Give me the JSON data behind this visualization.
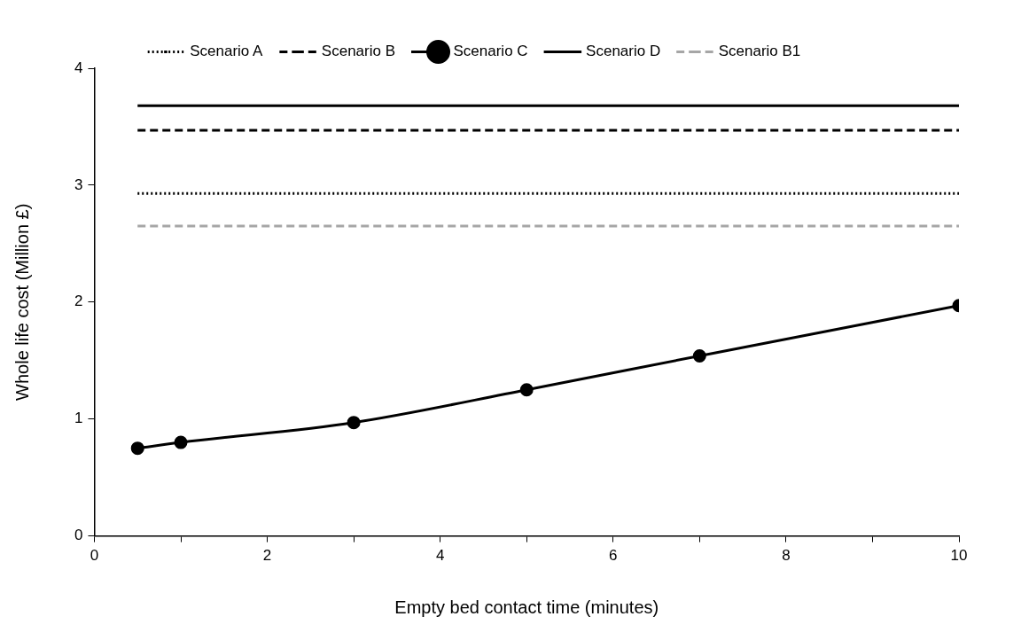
{
  "chart_data": {
    "type": "line",
    "xlabel": "Empty bed contact time (minutes)",
    "ylabel": "Whole life cost (Million £)",
    "xlim": [
      0,
      10
    ],
    "xticks": [
      0,
      {
        "value": 1,
        "label": null
      },
      2,
      {
        "value": 3,
        "label": null
      },
      4,
      {
        "value": 5,
        "label": null
      },
      6,
      {
        "value": 7,
        "label": null
      },
      8,
      {
        "value": 9,
        "label": null
      },
      10
    ],
    "ylim": [
      0,
      4
    ],
    "yticks": [
      0,
      1,
      2,
      3,
      4
    ],
    "grid": false,
    "legend": "top",
    "series": [
      {
        "name": "Scenario A",
        "color": "#000000",
        "line_style": "dotted",
        "marker": "none",
        "x": [
          0.5,
          10
        ],
        "values": [
          2.93,
          2.93
        ]
      },
      {
        "name": "Scenario B",
        "color": "#000000",
        "line_style": "dashed",
        "marker": "none",
        "x": [
          0.5,
          10
        ],
        "values": [
          3.47,
          3.47
        ]
      },
      {
        "name": "Scenario C",
        "color": "#000000",
        "line_style": "solid",
        "marker": "circle",
        "x": [
          0.5,
          1,
          3,
          5,
          7,
          10
        ],
        "values": [
          0.75,
          0.8,
          0.97,
          1.25,
          1.54,
          1.97
        ]
      },
      {
        "name": "Scenario D",
        "color": "#000000",
        "line_style": "solid",
        "marker": "none",
        "x": [
          0.5,
          10
        ],
        "values": [
          3.68,
          3.68
        ]
      },
      {
        "name": "Scenario B1",
        "color": "#a6a6a6",
        "line_style": "dashed",
        "marker": "none",
        "x": [
          0.5,
          10
        ],
        "values": [
          2.65,
          2.65
        ]
      }
    ]
  }
}
